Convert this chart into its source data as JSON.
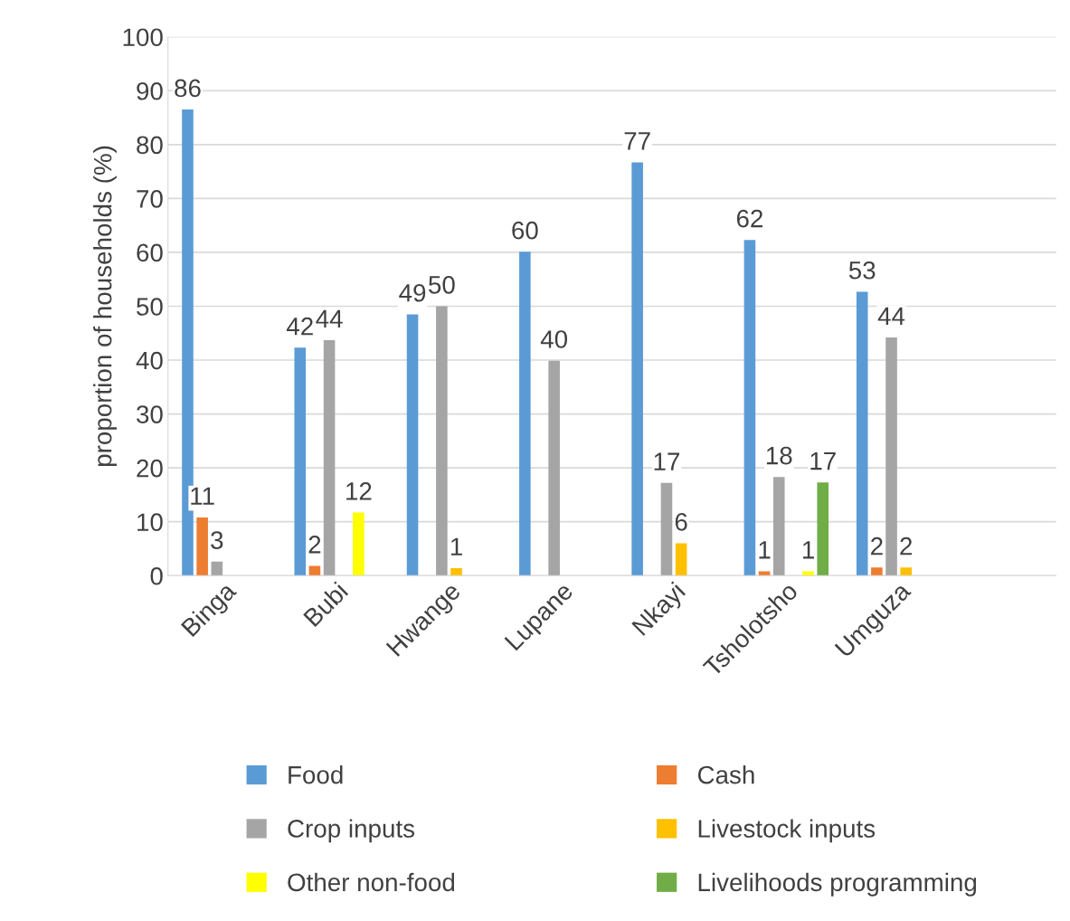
{
  "chart_data": {
    "type": "bar",
    "ylabel": "proportion of households (%)",
    "categories": [
      "Binga",
      "Bubi",
      "Hwange",
      "Lupane",
      "Nkayi",
      "Tsholotsho",
      "Umguza"
    ],
    "ylim": [
      0,
      100
    ],
    "yticks": [
      0,
      10,
      20,
      30,
      40,
      50,
      60,
      70,
      80,
      90,
      100
    ],
    "grid": "y",
    "legend": "bottom",
    "series": [
      {
        "name": "Food",
        "color": "#5b9bd5",
        "values": [
          86.5,
          42.3,
          48.5,
          60.1,
          76.7,
          62.3,
          52.7
        ],
        "value_labels": [
          "86",
          "42",
          "49",
          "60",
          "77",
          "62",
          "53"
        ]
      },
      {
        "name": "Cash",
        "color": "#ed7d31",
        "values": [
          10.8,
          1.8,
          null,
          null,
          null,
          0.8,
          1.5
        ],
        "value_labels": [
          "11",
          "2",
          null,
          null,
          null,
          "1",
          "2"
        ]
      },
      {
        "name": "Crop inputs",
        "color": "#a5a5a5",
        "values": [
          2.6,
          43.7,
          50.0,
          39.9,
          17.2,
          18.3,
          44.2
        ],
        "value_labels": [
          "3",
          "44",
          "50",
          "40",
          "17",
          "18",
          "44"
        ]
      },
      {
        "name": "Livestock inputs",
        "color": "#ffc000",
        "values": [
          null,
          null,
          1.4,
          null,
          6.0,
          null,
          1.5
        ],
        "value_labels": [
          null,
          null,
          "1",
          null,
          "6",
          null,
          "2"
        ]
      },
      {
        "name": "Other non-food",
        "color": "#ffff00",
        "values": [
          null,
          11.7,
          null,
          null,
          null,
          0.8,
          null
        ],
        "value_labels": [
          null,
          "12",
          null,
          null,
          null,
          "1",
          null
        ]
      },
      {
        "name": "Livelihoods programming",
        "color": "#70ad47",
        "values": [
          null,
          null,
          null,
          null,
          null,
          17.3,
          null
        ],
        "value_labels": [
          null,
          null,
          null,
          null,
          null,
          "17",
          null
        ]
      }
    ]
  }
}
